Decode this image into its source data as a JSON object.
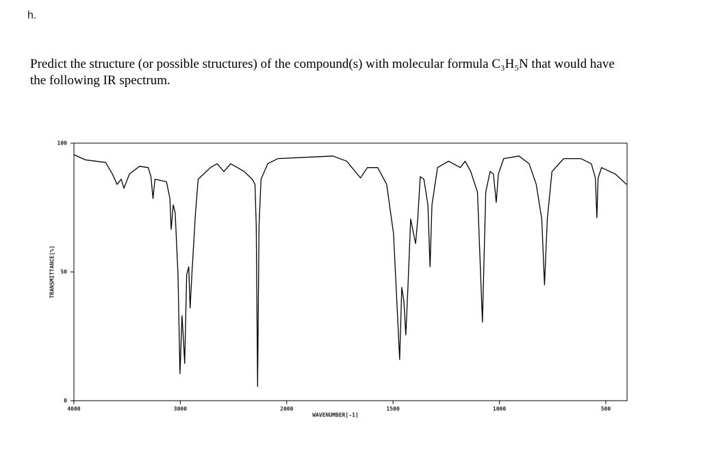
{
  "label": "h.",
  "question": "Predict the structure (or possible structures) of the compound(s) with molecular formula C₃H₅N that would have the following IR spectrum.",
  "chart_data": {
    "type": "line",
    "xlabel": "WAVENUMBER[-1]",
    "ylabel": "TRANSMITTANCE[%]",
    "xlim": [
      4000,
      400
    ],
    "ylim": [
      0,
      100
    ],
    "xticks": [
      4000,
      3000,
      2000,
      1500,
      1000,
      500
    ],
    "yticks": [
      0,
      50,
      100
    ],
    "xscale": {
      "break": 2000,
      "ratio": 2
    },
    "color": "#000000",
    "series": [
      {
        "name": "IR spectrum",
        "color": "#000000",
        "x": [
          4000,
          3892,
          3702,
          3638,
          3594,
          3556,
          3530,
          3479,
          3384,
          3302,
          3276,
          3257,
          3238,
          3130,
          3098,
          3086,
          3067,
          3048,
          3022,
          3003,
          2984,
          2971,
          2959,
          2940,
          2921,
          2908,
          2889,
          2857,
          2832,
          2781,
          2717,
          2654,
          2590,
          2527,
          2463,
          2400,
          2324,
          2298,
          2286,
          2273,
          2260,
          2241,
          2178,
          2083,
          1913,
          1783,
          1718,
          1653,
          1621,
          1572,
          1530,
          1498,
          1482,
          1469,
          1459,
          1449,
          1440,
          1430,
          1417,
          1404,
          1394,
          1384,
          1372,
          1355,
          1336,
          1326,
          1317,
          1291,
          1239,
          1184,
          1161,
          1135,
          1103,
          1080,
          1064,
          1044,
          1028,
          1015,
          1005,
          980,
          908,
          860,
          827,
          801,
          788,
          775,
          753,
          698,
          617,
          568,
          549,
          542,
          536,
          520,
          455,
          403
        ],
        "values": [
          95.5,
          93.5,
          92.5,
          88,
          84,
          86,
          82.5,
          88,
          91,
          90.5,
          87,
          78.5,
          86,
          85,
          78.5,
          66.5,
          76,
          73,
          49,
          10.5,
          33,
          24,
          14.5,
          49,
          52,
          36,
          50.5,
          73,
          86,
          88,
          90.5,
          92,
          89,
          92,
          90.5,
          89,
          86,
          84,
          68,
          5.5,
          68,
          86,
          92,
          94,
          94.5,
          95,
          93,
          86.5,
          90.5,
          90.5,
          84,
          65,
          38.5,
          16,
          44,
          38.5,
          25.5,
          44,
          70.5,
          65,
          61,
          70.5,
          87,
          86,
          76,
          52,
          76,
          90.5,
          93,
          90.5,
          93,
          89,
          81,
          30.5,
          81,
          89,
          88,
          77,
          88,
          94,
          95,
          92,
          84,
          70.5,
          45,
          70.5,
          89,
          94,
          94,
          92,
          86.5,
          71,
          86.5,
          90.5,
          88,
          84
        ]
      }
    ]
  }
}
